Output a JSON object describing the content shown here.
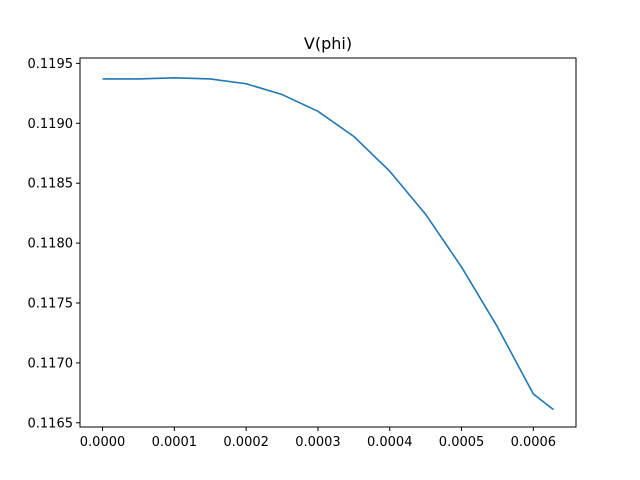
{
  "chart_data": {
    "type": "line",
    "title": "V(phi)",
    "xlabel": "",
    "ylabel": "",
    "xlim": [
      -3.14e-05,
      0.0006594
    ],
    "ylim": [
      0.116465,
      0.119545
    ],
    "grid": false,
    "x_ticks": [
      {
        "value": 0.0,
        "label": "0.0000"
      },
      {
        "value": 0.0001,
        "label": "0.0001"
      },
      {
        "value": 0.0002,
        "label": "0.0002"
      },
      {
        "value": 0.0003,
        "label": "0.0003"
      },
      {
        "value": 0.0004,
        "label": "0.0004"
      },
      {
        "value": 0.0005,
        "label": "0.0005"
      },
      {
        "value": 0.0006,
        "label": "0.0006"
      }
    ],
    "y_ticks": [
      {
        "value": 0.1165,
        "label": "0.1165"
      },
      {
        "value": 0.117,
        "label": "0.1170"
      },
      {
        "value": 0.1175,
        "label": "0.1175"
      },
      {
        "value": 0.118,
        "label": "0.1180"
      },
      {
        "value": 0.1185,
        "label": "0.1185"
      },
      {
        "value": 0.119,
        "label": "0.1190"
      },
      {
        "value": 0.1195,
        "label": "0.1195"
      }
    ],
    "series": [
      {
        "color": "#1f77b4",
        "x": [
          0.0,
          5e-05,
          0.0001,
          0.00015,
          0.0002,
          0.00025,
          0.0003,
          0.00035,
          0.0004,
          0.00045,
          0.0005,
          0.00055,
          0.0006,
          0.000628
        ],
        "y": [
          0.11937,
          0.11937,
          0.11938,
          0.11937,
          0.11933,
          0.11924,
          0.1191,
          0.11889,
          0.1186,
          0.11824,
          0.1178,
          0.1173,
          0.11674,
          0.11661
        ]
      }
    ]
  }
}
